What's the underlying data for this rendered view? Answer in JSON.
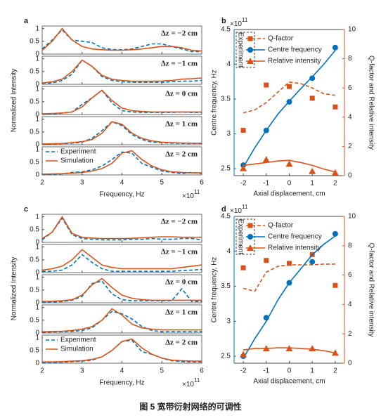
{
  "chart_data": [
    {
      "type": "line-stack",
      "label": "a",
      "ylabel": "Normalized Intensity",
      "xlabel": "Frequency, Hz",
      "x_multiplier": {
        "base": "×10",
        "exponent": "11"
      },
      "x": [
        2,
        2.25,
        2.5,
        2.75,
        3,
        3.25,
        3.5,
        3.75,
        4,
        4.25,
        4.5,
        4.75,
        5,
        5.25,
        5.5,
        5.75,
        6
      ],
      "xlim": [
        2,
        6
      ],
      "xticks": [
        2,
        3,
        4,
        5,
        6
      ],
      "ylim": [
        0,
        1.1
      ],
      "yticks": [
        0,
        0.5,
        1
      ],
      "legend": "upper left",
      "series": [
        {
          "name": "Experiment",
          "color": "#0072bd",
          "dashed": true
        },
        {
          "name": "Simulation",
          "color": "#d95319",
          "dashed": false
        }
      ],
      "subplots": [
        {
          "annotation": "Δz = −2 cm",
          "values": [
            [
              0.2,
              0.55,
              0.95,
              0.55,
              0.5,
              0.45,
              0.25,
              0.18,
              0.17,
              0.2,
              0.3,
              0.4,
              0.4,
              0.3,
              0.2,
              0.1,
              0.1
            ],
            [
              0.15,
              0.5,
              1.0,
              0.55,
              0.3,
              0.2,
              0.17,
              0.15,
              0.15,
              0.17,
              0.2,
              0.25,
              0.3,
              0.3,
              0.25,
              0.15,
              0.12
            ]
          ]
        },
        {
          "annotation": "Δz = −1 cm",
          "values": [
            [
              0.05,
              0.05,
              0.15,
              0.4,
              0.95,
              0.7,
              0.3,
              0.15,
              0.1,
              0.08,
              0.08,
              0.08,
              0.08,
              0.1,
              0.12,
              0.12,
              0.15
            ],
            [
              0.05,
              0.1,
              0.2,
              0.5,
              0.95,
              0.7,
              0.35,
              0.2,
              0.15,
              0.12,
              0.12,
              0.12,
              0.13,
              0.15,
              0.2,
              0.22,
              0.25
            ]
          ]
        },
        {
          "annotation": "Δz = 0 cm",
          "values": [
            [
              0.02,
              0.03,
              0.05,
              0.1,
              0.4,
              0.65,
              0.95,
              0.45,
              0.15,
              0.1,
              0.08,
              0.08,
              0.08,
              0.08,
              0.1,
              0.08,
              0.08
            ],
            [
              0.03,
              0.04,
              0.06,
              0.1,
              0.3,
              0.65,
              0.95,
              0.55,
              0.25,
              0.15,
              0.12,
              0.1,
              0.1,
              0.1,
              0.1,
              0.1,
              0.1
            ]
          ]
        },
        {
          "annotation": "Δz = 1 cm",
          "values": [
            [
              0.02,
              0.03,
              0.04,
              0.06,
              0.1,
              0.25,
              0.55,
              0.9,
              0.75,
              0.4,
              0.2,
              0.1,
              0.08,
              0.06,
              0.05,
              0.05,
              0.05
            ],
            [
              0.03,
              0.04,
              0.05,
              0.08,
              0.12,
              0.2,
              0.45,
              0.9,
              0.8,
              0.45,
              0.25,
              0.15,
              0.1,
              0.08,
              0.07,
              0.06,
              0.06
            ]
          ]
        },
        {
          "annotation": "Δz = 2 cm",
          "values": [
            [
              0.02,
              0.02,
              0.04,
              0.1,
              0.12,
              0.2,
              0.35,
              0.6,
              0.9,
              0.85,
              0.45,
              0.3,
              0.15,
              0.1,
              0.05,
              0.1,
              0.05
            ],
            [
              0.03,
              0.04,
              0.05,
              0.07,
              0.1,
              0.15,
              0.25,
              0.45,
              0.85,
              0.95,
              0.6,
              0.35,
              0.2,
              0.12,
              0.1,
              0.08,
              0.08
            ]
          ]
        }
      ]
    },
    {
      "type": "dual-axis",
      "label": "b",
      "xlabel": "Axial displacement, cm",
      "ylabel": "Centre frequency, Hz",
      "y2label": "Q-factor and Relative intensity",
      "y_multiplier": {
        "base": "×10",
        "exponent": "11"
      },
      "x": [
        -2,
        -1,
        0,
        1,
        2
      ],
      "fit_x": [
        -2,
        -1.5,
        -1,
        -0.5,
        0,
        0.5,
        1,
        1.5,
        2
      ],
      "xlim": [
        -2.4,
        2.4
      ],
      "xticks": [
        -2,
        -1,
        0,
        1,
        2
      ],
      "ylim": [
        2.4,
        4.5
      ],
      "yticks": [
        2.5,
        3,
        3.5,
        4,
        4.5
      ],
      "y2lim": [
        0,
        10
      ],
      "y2ticks": [
        0,
        2,
        4,
        6,
        8,
        10
      ],
      "legend_group": "Experiment",
      "ycolor": "#0072bd",
      "y2color": "#d95319",
      "series": [
        {
          "name": "Q-factor",
          "color": "#d95319",
          "axis": "y2",
          "marker": "square",
          "dashed": true,
          "values": [
            3.1,
            6.2,
            6.1,
            5.3,
            4.7
          ],
          "fit": [
            4.3,
            4.5,
            5.0,
            5.7,
            6.4,
            6.3,
            6.0,
            5.6,
            5.5
          ]
        },
        {
          "name": "Centre frequency",
          "color": "#0072bd",
          "axis": "y",
          "marker": "circle",
          "dashed": false,
          "values": [
            2.55,
            3.05,
            3.46,
            3.8,
            4.24
          ],
          "fit": [
            2.52,
            2.8,
            3.05,
            3.28,
            3.47,
            3.65,
            3.82,
            4.0,
            4.2
          ]
        },
        {
          "name": "Relative intensity",
          "color": "#d95319",
          "axis": "y2",
          "marker": "triangle",
          "dashed": false,
          "values": [
            0.5,
            1.1,
            0.8,
            0.3,
            0.2
          ],
          "fit": [
            0.7,
            0.8,
            0.9,
            1.0,
            1.05,
            0.9,
            0.7,
            0.45,
            0.25
          ]
        }
      ]
    },
    {
      "type": "line-stack",
      "label": "c",
      "ylabel": "Normalized Intensity",
      "xlabel": "Frequency, Hz",
      "x_multiplier": {
        "base": "×10",
        "exponent": "11"
      },
      "x": [
        2,
        2.25,
        2.5,
        2.75,
        3,
        3.25,
        3.5,
        3.75,
        4,
        4.25,
        4.5,
        4.75,
        5,
        5.25,
        5.5,
        5.75,
        6
      ],
      "xlim": [
        2,
        6
      ],
      "xticks": [
        2,
        3,
        4,
        5,
        6
      ],
      "ylim": [
        0,
        1.1
      ],
      "yticks": [
        0,
        0.5,
        1
      ],
      "legend": "upper left",
      "series": [
        {
          "name": "Experiment",
          "color": "#0072bd",
          "dashed": true
        },
        {
          "name": "Simulation",
          "color": "#d95319",
          "dashed": false
        }
      ],
      "subplots": [
        {
          "annotation": "Δz = −2 cm",
          "values": [
            [
              0.1,
              0.4,
              0.95,
              0.3,
              0.15,
              0.12,
              0.1,
              0.1,
              0.1,
              0.12,
              0.12,
              0.15,
              0.12,
              0.12,
              0.15,
              0.15,
              0.1
            ],
            [
              0.15,
              0.4,
              1.0,
              0.35,
              0.2,
              0.17,
              0.15,
              0.15,
              0.15,
              0.16,
              0.18,
              0.2,
              0.22,
              0.22,
              0.2,
              0.2,
              0.2
            ]
          ]
        },
        {
          "annotation": "Δz = −1 cm",
          "values": [
            [
              0.05,
              0.05,
              0.1,
              0.3,
              0.7,
              0.4,
              0.15,
              0.05,
              0.05,
              0.05,
              0.05,
              0.05,
              0.05,
              0.05,
              0.08,
              0.1,
              0.12
            ],
            [
              0.1,
              0.15,
              0.25,
              0.5,
              0.9,
              0.6,
              0.3,
              0.2,
              0.15,
              0.15,
              0.15,
              0.15,
              0.15,
              0.15,
              0.2,
              0.25,
              0.3
            ]
          ]
        },
        {
          "annotation": "Δz = 0 cm",
          "values": [
            [
              0.03,
              0.03,
              0.05,
              0.1,
              0.25,
              0.75,
              0.85,
              0.35,
              0.12,
              0.08,
              0.08,
              0.08,
              0.08,
              0.08,
              0.55,
              0.05,
              0.05
            ],
            [
              0.05,
              0.06,
              0.08,
              0.12,
              0.3,
              0.7,
              0.95,
              0.6,
              0.3,
              0.18,
              0.12,
              0.1,
              0.1,
              0.1,
              0.1,
              0.1,
              0.1
            ]
          ]
        },
        {
          "annotation": "Δz = 1 cm",
          "values": [
            [
              0.03,
              0.04,
              0.05,
              0.06,
              0.1,
              0.2,
              0.5,
              0.85,
              0.75,
              0.55,
              0.25,
              0.1,
              0.05,
              0.05,
              0.05,
              0.05,
              0.05
            ],
            [
              0.05,
              0.06,
              0.07,
              0.1,
              0.15,
              0.25,
              0.5,
              0.95,
              0.7,
              0.35,
              0.2,
              0.15,
              0.12,
              0.12,
              0.12,
              0.12,
              0.12
            ]
          ]
        },
        {
          "annotation": "Δz = 2 cm",
          "values": [
            [
              0.03,
              0.03,
              0.04,
              0.06,
              0.08,
              0.12,
              0.25,
              0.5,
              0.85,
              0.9,
              0.45,
              0.35,
              0.2,
              0.1,
              0.06,
              0.05,
              0.05
            ],
            [
              0.05,
              0.05,
              0.06,
              0.08,
              0.1,
              0.15,
              0.25,
              0.5,
              0.85,
              0.95,
              0.6,
              0.35,
              0.2,
              0.12,
              0.1,
              0.08,
              0.08
            ]
          ]
        }
      ]
    },
    {
      "type": "dual-axis",
      "label": "d",
      "xlabel": "Axial displacement, cm",
      "ylabel": "Centre frequency, Hz",
      "y2label": "Q-factor and Relative intensity",
      "y_multiplier": {
        "base": "×10",
        "exponent": "11"
      },
      "x": [
        -2,
        -1,
        0,
        1,
        2
      ],
      "fit_x": [
        -2,
        -1.5,
        -1,
        -0.5,
        0,
        0.5,
        1,
        1.5,
        2
      ],
      "xlim": [
        -2.4,
        2.4
      ],
      "xticks": [
        -2,
        -1,
        0,
        1,
        2
      ],
      "ylim": [
        2.4,
        4.5
      ],
      "yticks": [
        2.5,
        3,
        3.5,
        4,
        4.5
      ],
      "y2lim": [
        0,
        10
      ],
      "y2ticks": [
        0,
        2,
        4,
        6,
        8,
        10
      ],
      "legend_group": "Experiment",
      "ycolor": "#0072bd",
      "y2color": "#d95319",
      "series": [
        {
          "name": "Q-factor",
          "color": "#d95319",
          "axis": "y2",
          "marker": "square",
          "dashed": true,
          "values": [
            6.5,
            7.0,
            6.8,
            7.4,
            5.3
          ],
          "fit": [
            5.1,
            4.9,
            6.2,
            6.6,
            6.7,
            6.7,
            6.7,
            6.75,
            6.75
          ]
        },
        {
          "name": "Centre frequency",
          "color": "#0072bd",
          "axis": "y",
          "marker": "circle",
          "dashed": false,
          "values": [
            2.5,
            3.05,
            3.55,
            3.85,
            4.25
          ],
          "fit": [
            2.47,
            2.75,
            3.0,
            3.3,
            3.55,
            3.75,
            3.95,
            4.1,
            4.22
          ]
        },
        {
          "name": "Relative intensity",
          "color": "#d95319",
          "axis": "y2",
          "marker": "triangle",
          "dashed": false,
          "values": [
            0.6,
            1.0,
            1.0,
            1.0,
            0.7
          ],
          "fit": [
            0.9,
            1.0,
            1.0,
            1.05,
            1.05,
            1.0,
            0.95,
            0.85,
            0.7
          ]
        }
      ]
    }
  ],
  "caption": "图 5  宽带衍射网络的可调性"
}
